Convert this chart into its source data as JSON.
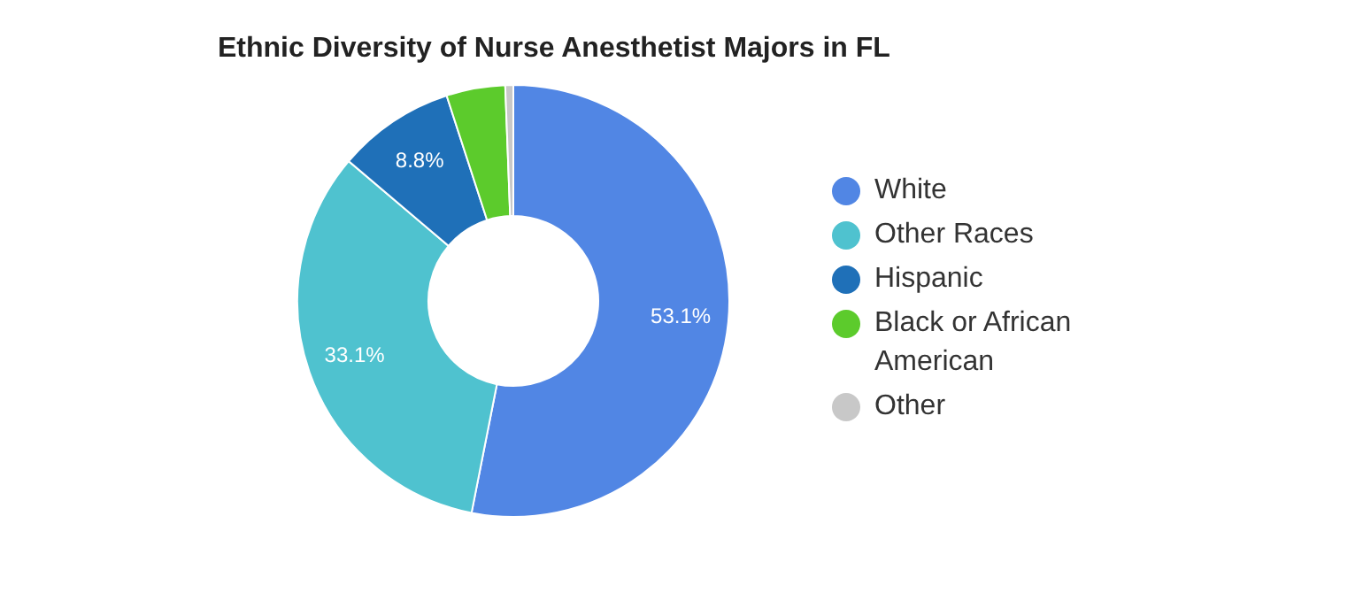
{
  "chart_data": {
    "type": "donut",
    "title": "Ethnic Diversity of Nurse Anesthetist Majors in FL",
    "categories": [
      "White",
      "Other Races",
      "Hispanic",
      "Black or African American",
      "Other"
    ],
    "values": [
      53.1,
      33.1,
      8.8,
      4.4,
      0.6
    ],
    "colors": [
      "#5186e4",
      "#4fc2cf",
      "#1f70b8",
      "#5ccb2c",
      "#c8c8c8"
    ],
    "value_labels": [
      "53.1%",
      "33.1%",
      "8.8%",
      null,
      null
    ],
    "legend": "right"
  }
}
